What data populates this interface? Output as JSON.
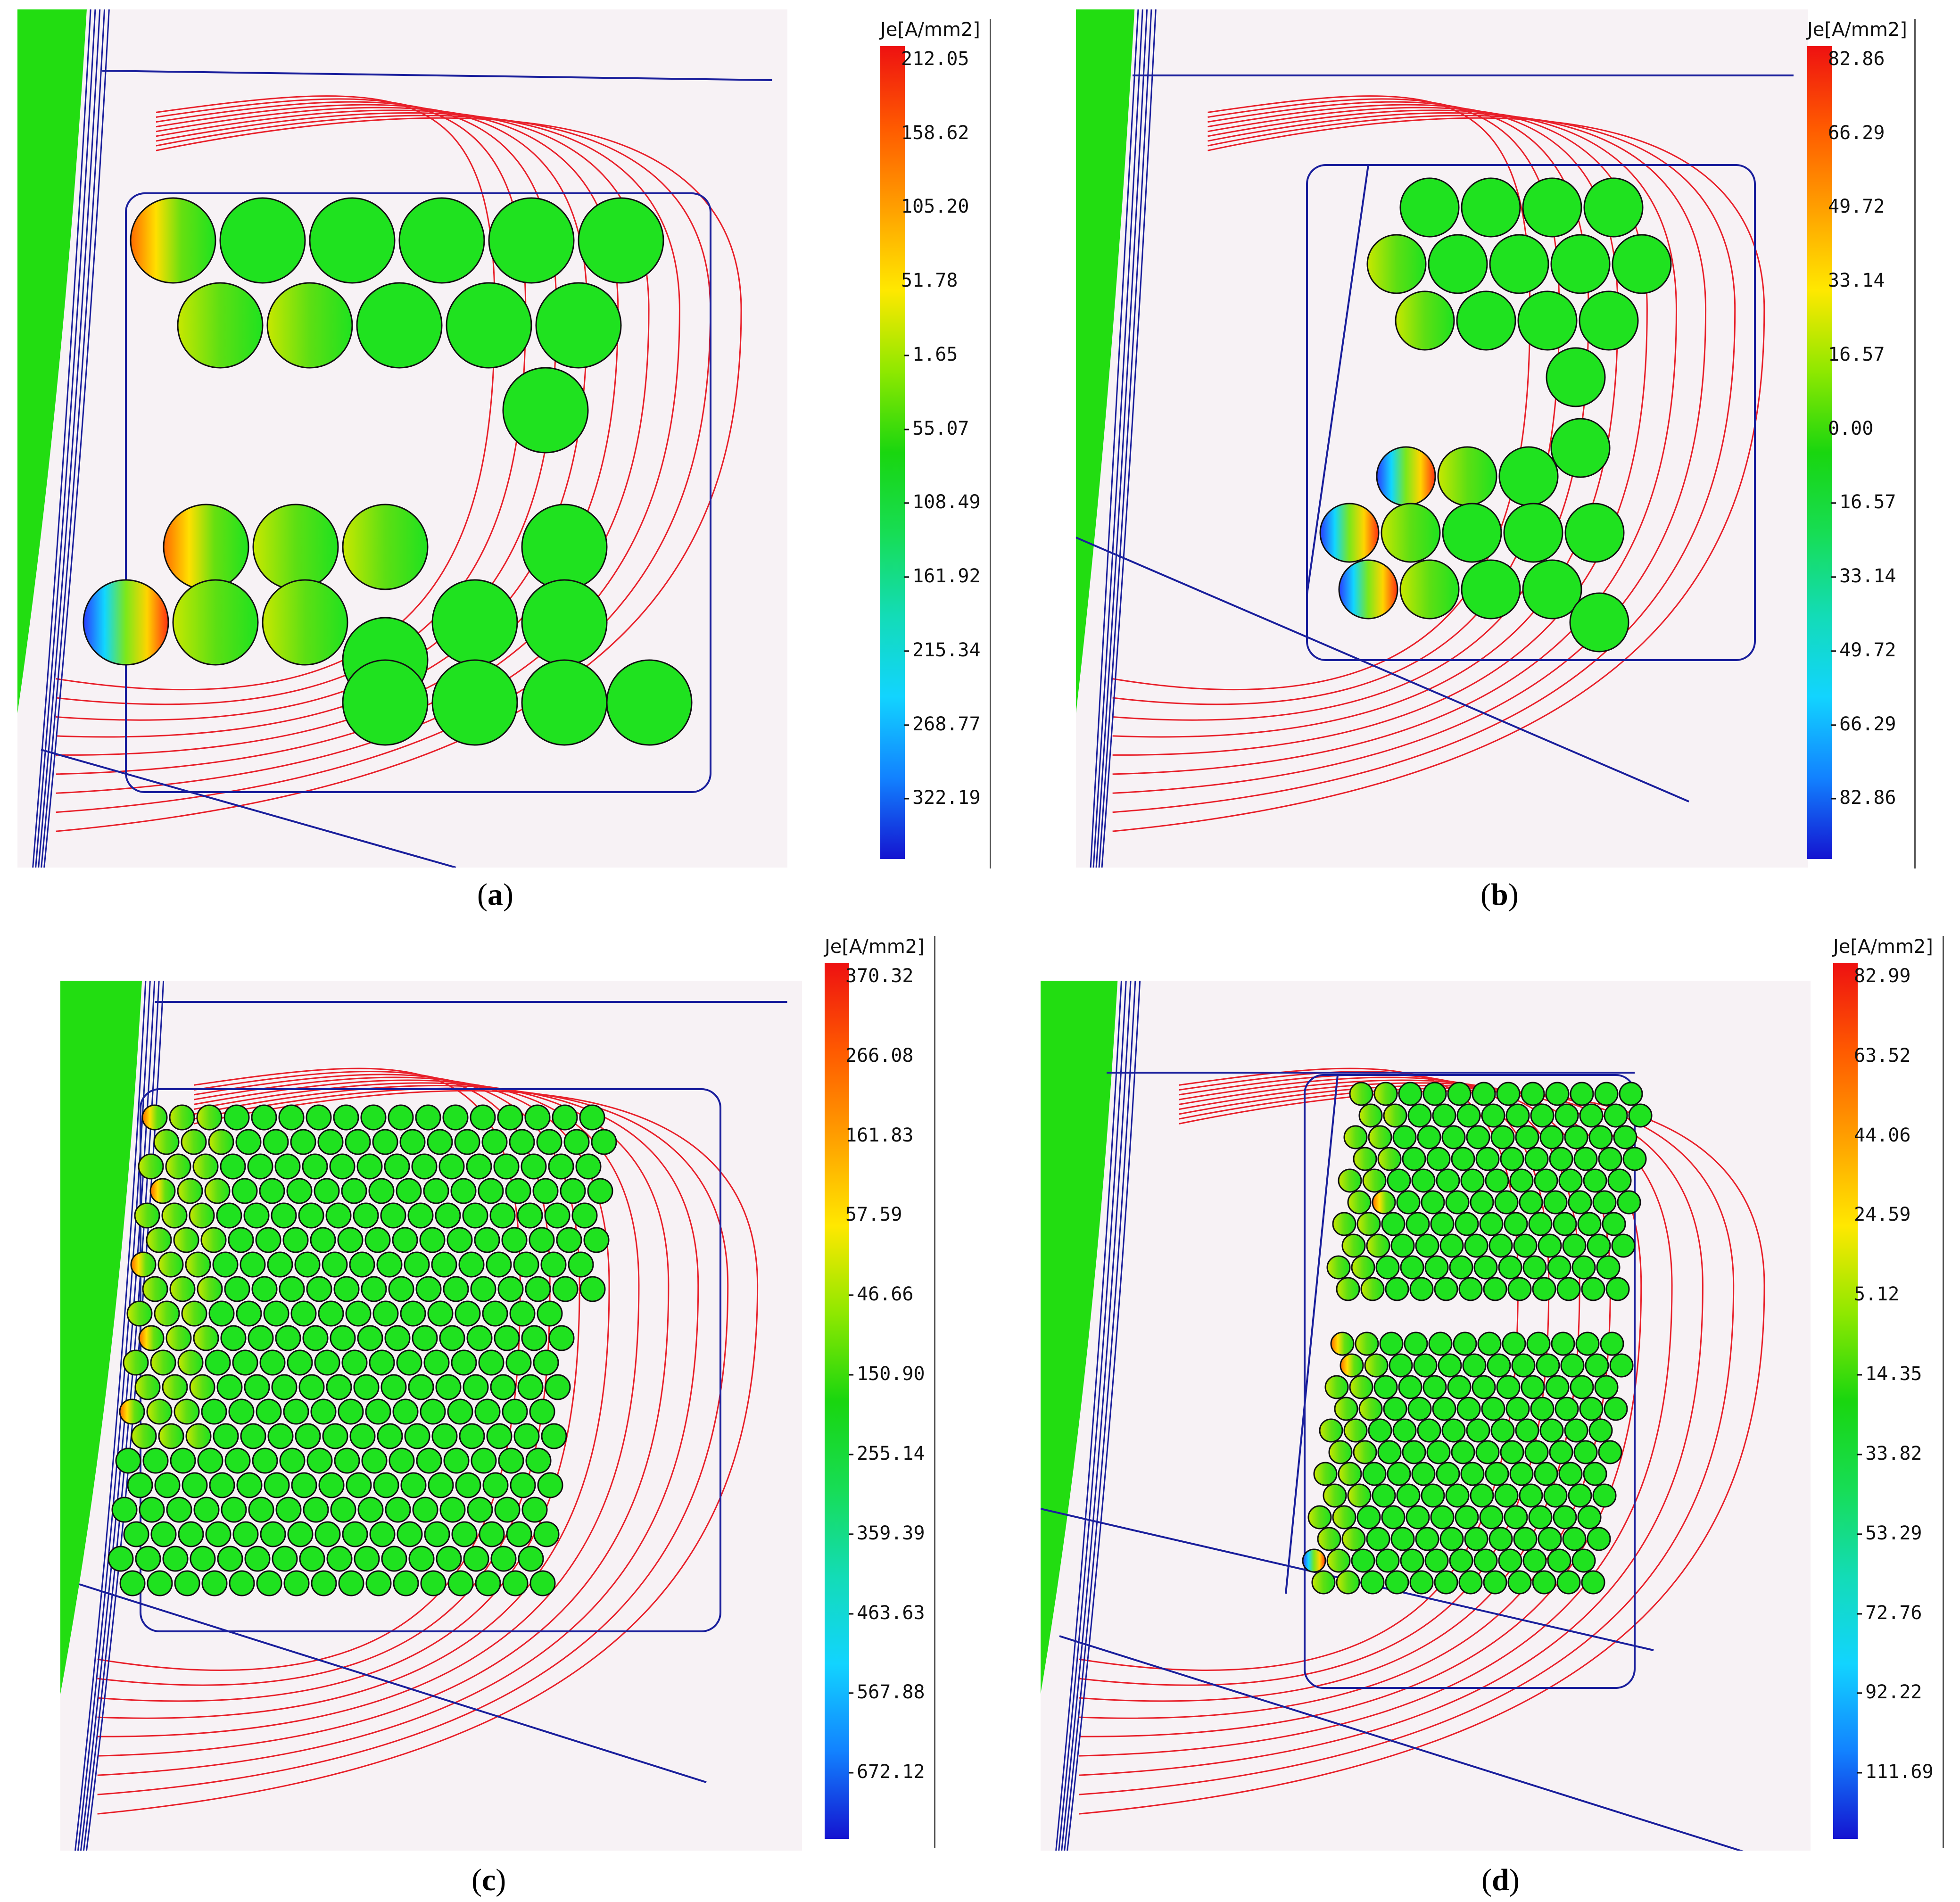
{
  "panels": [
    {
      "id": "a",
      "caption_letter": "a",
      "legend": {
        "title": "Je[A/mm2]",
        "labels": [
          "212.05",
          "158.62",
          "105.20",
          "51.78",
          "-1.65",
          "-55.07",
          "-108.49",
          "-161.92",
          "-215.34",
          "-268.77",
          "-322.19"
        ],
        "max": 212.05,
        "min": -322.19
      },
      "conductors": "large-round"
    },
    {
      "id": "b",
      "caption_letter": "b",
      "legend": {
        "title": "Je[A/mm2]",
        "labels": [
          "82.86",
          "66.29",
          "49.72",
          "33.14",
          "16.57",
          "0.00",
          "-16.57",
          "-33.14",
          "-49.72",
          "-66.29",
          "-82.86"
        ],
        "max": 82.86,
        "min": -82.86
      },
      "conductors": "large-round-split"
    },
    {
      "id": "c",
      "caption_letter": "c",
      "legend": {
        "title": "Je[A/mm2]",
        "labels": [
          "370.32",
          "266.08",
          "161.83",
          "57.59",
          "-46.66",
          "-150.90",
          "-255.14",
          "-359.39",
          "-463.63",
          "-567.88",
          "-672.12"
        ],
        "max": 370.32,
        "min": -672.12
      },
      "conductors": "small-strand"
    },
    {
      "id": "d",
      "caption_letter": "d",
      "legend": {
        "title": "Je[A/mm2]",
        "labels": [
          "82.99",
          "63.52",
          "44.06",
          "24.59",
          "5.12",
          "-14.35",
          "-33.82",
          "-53.29",
          "-72.76",
          "-92.22",
          "-111.69"
        ],
        "max": 82.99,
        "min": -111.69
      },
      "conductors": "small-strand-split"
    }
  ],
  "colors": {
    "background": "#f7f2f5",
    "flux_line": "#e8202a",
    "boundary": "#1a1f9c",
    "core": "#22dd11",
    "conductor": "#1fe21f"
  }
}
